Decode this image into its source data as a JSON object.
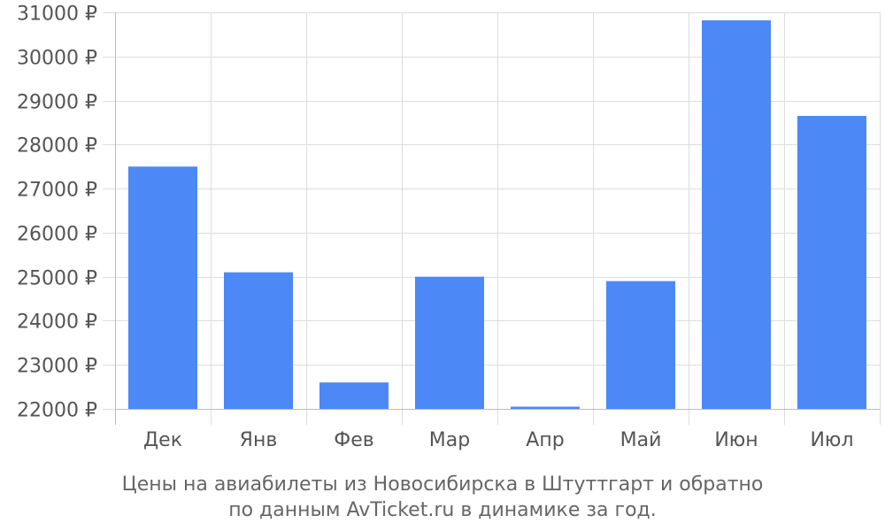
{
  "chart_data": {
    "type": "bar",
    "categories": [
      "Дек",
      "Янв",
      "Фев",
      "Мар",
      "Апр",
      "Май",
      "Июн",
      "Июл"
    ],
    "values": [
      27500,
      25100,
      22600,
      25000,
      22050,
      24900,
      30820,
      28650
    ],
    "ylim": [
      22000,
      31000
    ],
    "yticks": [
      22000,
      23000,
      24000,
      25000,
      26000,
      27000,
      28000,
      29000,
      30000,
      31000
    ],
    "ytick_labels": [
      "22000 ₽",
      "23000 ₽",
      "24000 ₽",
      "25000 ₽",
      "26000 ₽",
      "27000 ₽",
      "28000 ₽",
      "29000 ₽",
      "30000 ₽",
      "31000 ₽"
    ],
    "grid": true,
    "bar_color": "#4d88f7",
    "grid_color": "#dddddd"
  },
  "caption": {
    "line1": "Цены на авиабилеты из Новосибирска в Штуттгарт и обратно",
    "line2": "по данным AvTicket.ru в динамике за год."
  }
}
